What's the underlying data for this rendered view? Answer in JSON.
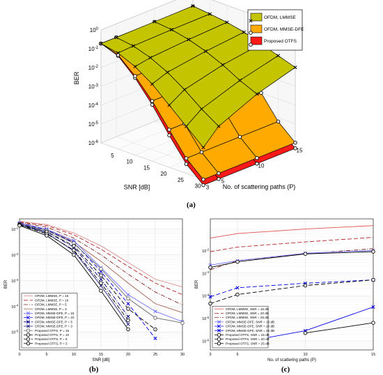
{
  "panel_labels": {
    "a": "(a)",
    "b": "(b)",
    "c": "(c)"
  },
  "chart_data": [
    {
      "panel": "(a)",
      "type": "surface",
      "zlabel": "BER",
      "xlabel": "SNR [dB]",
      "ylabel": "No. of scattering paths (P)",
      "z_scale": "log",
      "z_ticks": [
        "10^0",
        "10^-1",
        "10^-2",
        "10^-3",
        "10^-4",
        "10^-5",
        "10^-6"
      ],
      "z_tick_values": [
        0,
        -1,
        -2,
        -3,
        -4,
        -5,
        -6
      ],
      "snr_ticks": [
        "5",
        "10",
        "15",
        "20",
        "25",
        "30"
      ],
      "snr_values": [
        0,
        5,
        10,
        15,
        20,
        25,
        30
      ],
      "p_ticks": [
        "3",
        "5",
        "10",
        "15"
      ],
      "p_values": [
        3,
        5,
        10,
        15
      ],
      "legend": [
        "OFDM, LMMSE",
        "OFDM, MMSE-DFE",
        "Proposed OTFS"
      ],
      "legend_position": "top-right",
      "colors": [
        "#c4c400",
        "#ffaa00",
        "#ff1a1a"
      ],
      "surfaces": [
        {
          "name": "OFDM, LMMSE",
          "log10_ber": [
            [
              -0.72,
              -0.72,
              -0.7,
              -0.68
            ],
            [
              -0.9,
              -0.85,
              -0.8,
              -0.78
            ],
            [
              -1.3,
              -1.15,
              -1.0,
              -0.9
            ],
            [
              -1.9,
              -1.6,
              -1.3,
              -1.1
            ],
            [
              -2.7,
              -2.2,
              -1.7,
              -1.4
            ],
            [
              -3.5,
              -2.9,
              -2.2,
              -1.7
            ],
            [
              -4.3,
              -3.5,
              -2.6,
              -2.0
            ]
          ]
        },
        {
          "name": "OFDM, MMSE-DFE",
          "log10_ber": [
            [
              -0.72,
              -0.72,
              -0.72,
              -0.72
            ],
            [
              -1.0,
              -1.0,
              -1.0,
              -1.0
            ],
            [
              -1.8,
              -1.8,
              -1.8,
              -1.8
            ],
            [
              -2.8,
              -2.8,
              -2.8,
              -2.8
            ],
            [
              -4.0,
              -4.0,
              -4.0,
              -4.0
            ],
            [
              -5.2,
              -5.2,
              -5.2,
              -5.2
            ],
            [
              -6.0,
              -6.0,
              -6.0,
              -6.0
            ]
          ]
        },
        {
          "name": "Proposed OTFS",
          "log10_ber": [
            [
              -0.72,
              -0.72,
              -0.72,
              -0.72
            ],
            [
              -1.05,
              -1.05,
              -1.05,
              -1.05
            ],
            [
              -1.9,
              -1.9,
              -1.9,
              -1.9
            ],
            [
              -3.0,
              -3.0,
              -3.0,
              -3.0
            ],
            [
              -4.3,
              -4.3,
              -4.3,
              -4.3
            ],
            [
              -5.5,
              -5.5,
              -5.5,
              -5.5
            ],
            [
              -6.3,
              -6.3,
              -6.3,
              -6.3
            ]
          ]
        }
      ]
    },
    {
      "panel": "(b)",
      "type": "line",
      "xlabel": "SNR [dB]",
      "ylabel": "BER",
      "y_scale": "log",
      "xlim": [
        0,
        30
      ],
      "ylim_log10": [
        -5.7,
        -0.6
      ],
      "x_ticks": [
        "0",
        "5",
        "10",
        "15",
        "20",
        "25",
        "30"
      ],
      "x_tick_values": [
        0,
        5,
        10,
        15,
        20,
        25,
        30
      ],
      "y_ticks": [
        "10^-1",
        "10^-2",
        "10^-3",
        "10^-4",
        "10^-5"
      ],
      "y_tick_values": [
        -1,
        -2,
        -3,
        -4,
        -5
      ],
      "grid": true,
      "legend_position": "bottom-left",
      "series": [
        {
          "name": "OFDM, LMMSE, P = 15",
          "color": "#d98b8b",
          "dash": "",
          "marker": "",
          "x": [
            0,
            5,
            10,
            15,
            20,
            25,
            30
          ],
          "log10_y": [
            -0.7,
            -0.82,
            -1.15,
            -1.65,
            -2.3,
            -2.95,
            -3.25
          ]
        },
        {
          "name": "OFDM, LMMSE, P = 10",
          "color": "#b02020",
          "dash": "6,3",
          "marker": "",
          "x": [
            0,
            5,
            10,
            15,
            20,
            25,
            30
          ],
          "log10_y": [
            -0.72,
            -0.86,
            -1.22,
            -1.78,
            -2.45,
            -3.1,
            -3.55
          ]
        },
        {
          "name": "OFDM, LMMSE, P = 5",
          "color": "#802020",
          "dash": "6,2,1,2",
          "marker": "",
          "x": [
            0,
            5,
            10,
            15,
            20,
            25,
            30
          ],
          "log10_y": [
            -0.74,
            -0.92,
            -1.35,
            -2.0,
            -2.75,
            -3.45,
            -3.95
          ]
        },
        {
          "name": "OFDM, LMMSE, P = 3",
          "color": "#a06050",
          "dash": "",
          "marker": "",
          "x": [
            0,
            5,
            10,
            15,
            20,
            25,
            30
          ],
          "log10_y": [
            -0.76,
            -1.0,
            -1.5,
            -2.25,
            -3.1,
            -3.9,
            -4.25
          ]
        },
        {
          "name": "OFDM, MMSE-DFE, P = 15",
          "color": "#6f6fff",
          "dash": "",
          "marker": "x",
          "x": [
            0,
            5,
            10,
            15,
            20,
            25,
            30
          ],
          "log10_y": [
            -0.76,
            -1.0,
            -1.45,
            -2.5,
            -3.55,
            -4.2,
            -4.6
          ]
        },
        {
          "name": "OFDM, MMSE-DFE, P = 10",
          "color": "#0000e6",
          "dash": "6,3",
          "marker": "x",
          "x": [
            0,
            5,
            10,
            15,
            20,
            25
          ],
          "log10_y": [
            -0.78,
            -1.03,
            -1.52,
            -2.65,
            -3.9,
            -5.25
          ]
        },
        {
          "name": "OFDM, MMSE-DFE, P = 5",
          "color": "#000080",
          "dash": "6,2,1,2",
          "marker": "x",
          "x": [
            0,
            5,
            10,
            15,
            20
          ],
          "log10_y": [
            -0.8,
            -1.1,
            -1.7,
            -2.95,
            -4.4
          ]
        },
        {
          "name": "OFDM, MMSE-DFE, P = 3",
          "color": "#202080",
          "dash": "",
          "marker": "x",
          "x": [
            0,
            5,
            10,
            15,
            20
          ],
          "log10_y": [
            -0.82,
            -1.15,
            -1.85,
            -3.2,
            -4.7
          ]
        },
        {
          "name": "Proposed OTFS, P = 15",
          "color": "#666666",
          "dash": "",
          "marker": "o",
          "x": [
            0,
            5,
            10,
            15,
            20,
            25,
            30
          ],
          "log10_y": [
            -0.8,
            -1.05,
            -1.55,
            -2.55,
            -3.7,
            -4.45,
            -4.65
          ]
        },
        {
          "name": "Proposed OTFS, P = 10",
          "color": "#000000",
          "dash": "6,3",
          "marker": "o",
          "x": [
            0,
            5,
            10,
            15,
            20,
            25
          ],
          "log10_y": [
            -0.82,
            -1.1,
            -1.65,
            -2.8,
            -4.1,
            -4.9
          ]
        },
        {
          "name": "Proposed OTFS, P = 5",
          "color": "#000000",
          "dash": "6,2,1,2",
          "marker": "o",
          "x": [
            0,
            5,
            10,
            15,
            20
          ],
          "log10_y": [
            -0.84,
            -1.18,
            -1.82,
            -3.1,
            -4.55
          ]
        },
        {
          "name": "Proposed OTFS, P = 3",
          "color": "#000000",
          "dash": "",
          "marker": "o",
          "x": [
            0,
            5,
            10,
            15,
            20
          ],
          "log10_y": [
            -0.86,
            -1.25,
            -2.0,
            -3.4,
            -4.9
          ]
        }
      ]
    },
    {
      "panel": "(c)",
      "type": "line",
      "xlabel": "No. of scattering paths (P)",
      "ylabel": "BER",
      "y_scale": "log",
      "xlim": [
        3,
        15
      ],
      "ylim_log10": [
        -6.4,
        -0.6
      ],
      "x_ticks": [
        "3",
        "5",
        "10",
        "15"
      ],
      "x_tick_values": [
        3,
        5,
        10,
        15
      ],
      "y_ticks": [
        "10^-2",
        "10^-3",
        "10^-4",
        "10^-5",
        "10^-6"
      ],
      "y_tick_values": [
        -2,
        -3,
        -4,
        -5,
        -6
      ],
      "grid": true,
      "legend_position": "bottom-left",
      "series": [
        {
          "name": "OFDM, LMMSE, SNR = 15 dB",
          "color": "#e05050",
          "dash": "",
          "marker": "",
          "x": [
            3,
            5,
            10,
            15
          ],
          "log10_y": [
            -1.45,
            -1.25,
            -1.05,
            -0.9
          ]
        },
        {
          "name": "OFDM, LMMSE, SNR = 20 dB",
          "color": "#b02020",
          "dash": "6,3",
          "marker": "",
          "x": [
            3,
            5,
            10,
            15
          ],
          "log10_y": [
            -2.05,
            -1.85,
            -1.62,
            -1.42
          ]
        },
        {
          "name": "OFDM, LMMSE, SNR = 25 dB",
          "color": "#802020",
          "dash": "6,2,1,2",
          "marker": "",
          "x": [
            3,
            5,
            10,
            15
          ],
          "log10_y": [
            -2.85,
            -2.45,
            -2.15,
            -1.92
          ]
        },
        {
          "name": "OFDM, MMSE-DFE, SNR = 15 dB",
          "color": "#6f6fff",
          "dash": "",
          "marker": "x",
          "x": [
            3,
            5,
            10,
            15
          ],
          "log10_y": [
            -2.65,
            -2.45,
            -2.12,
            -2.0
          ]
        },
        {
          "name": "OFDM, MMSE-DFE, SNR = 20 dB",
          "color": "#0000e6",
          "dash": "6,3",
          "marker": "x",
          "x": [
            3,
            5,
            10,
            15
          ],
          "log10_y": [
            -4.05,
            -3.65,
            -3.45,
            -3.3
          ]
        },
        {
          "name": "OFDM, MMSE-DFE, SNR = 25 dB",
          "color": "#0000e6",
          "dash": "",
          "marker": "x",
          "x": [
            5,
            10,
            15
          ],
          "log10_y": [
            -6.1,
            -5.55,
            -4.5
          ]
        },
        {
          "name": "Proposed OTFS, SNR = 15 dB",
          "color": "#000000",
          "dash": "",
          "marker": "o",
          "x": [
            3,
            5,
            10,
            15
          ],
          "log10_y": [
            -2.75,
            -2.5,
            -2.15,
            -2.05
          ]
        },
        {
          "name": "Proposed OTFS, SNR = 20 dB",
          "color": "#000000",
          "dash": "6,3",
          "marker": "o",
          "x": [
            3,
            5,
            10,
            15
          ],
          "log10_y": [
            -4.35,
            -3.95,
            -3.55,
            -3.3
          ]
        },
        {
          "name": "Proposed OTFS, SNR = 25 dB",
          "color": "#000000",
          "dash": "",
          "marker": "o",
          "x": [
            10,
            15
          ],
          "log10_y": [
            -5.65,
            -5.2
          ]
        }
      ]
    }
  ]
}
